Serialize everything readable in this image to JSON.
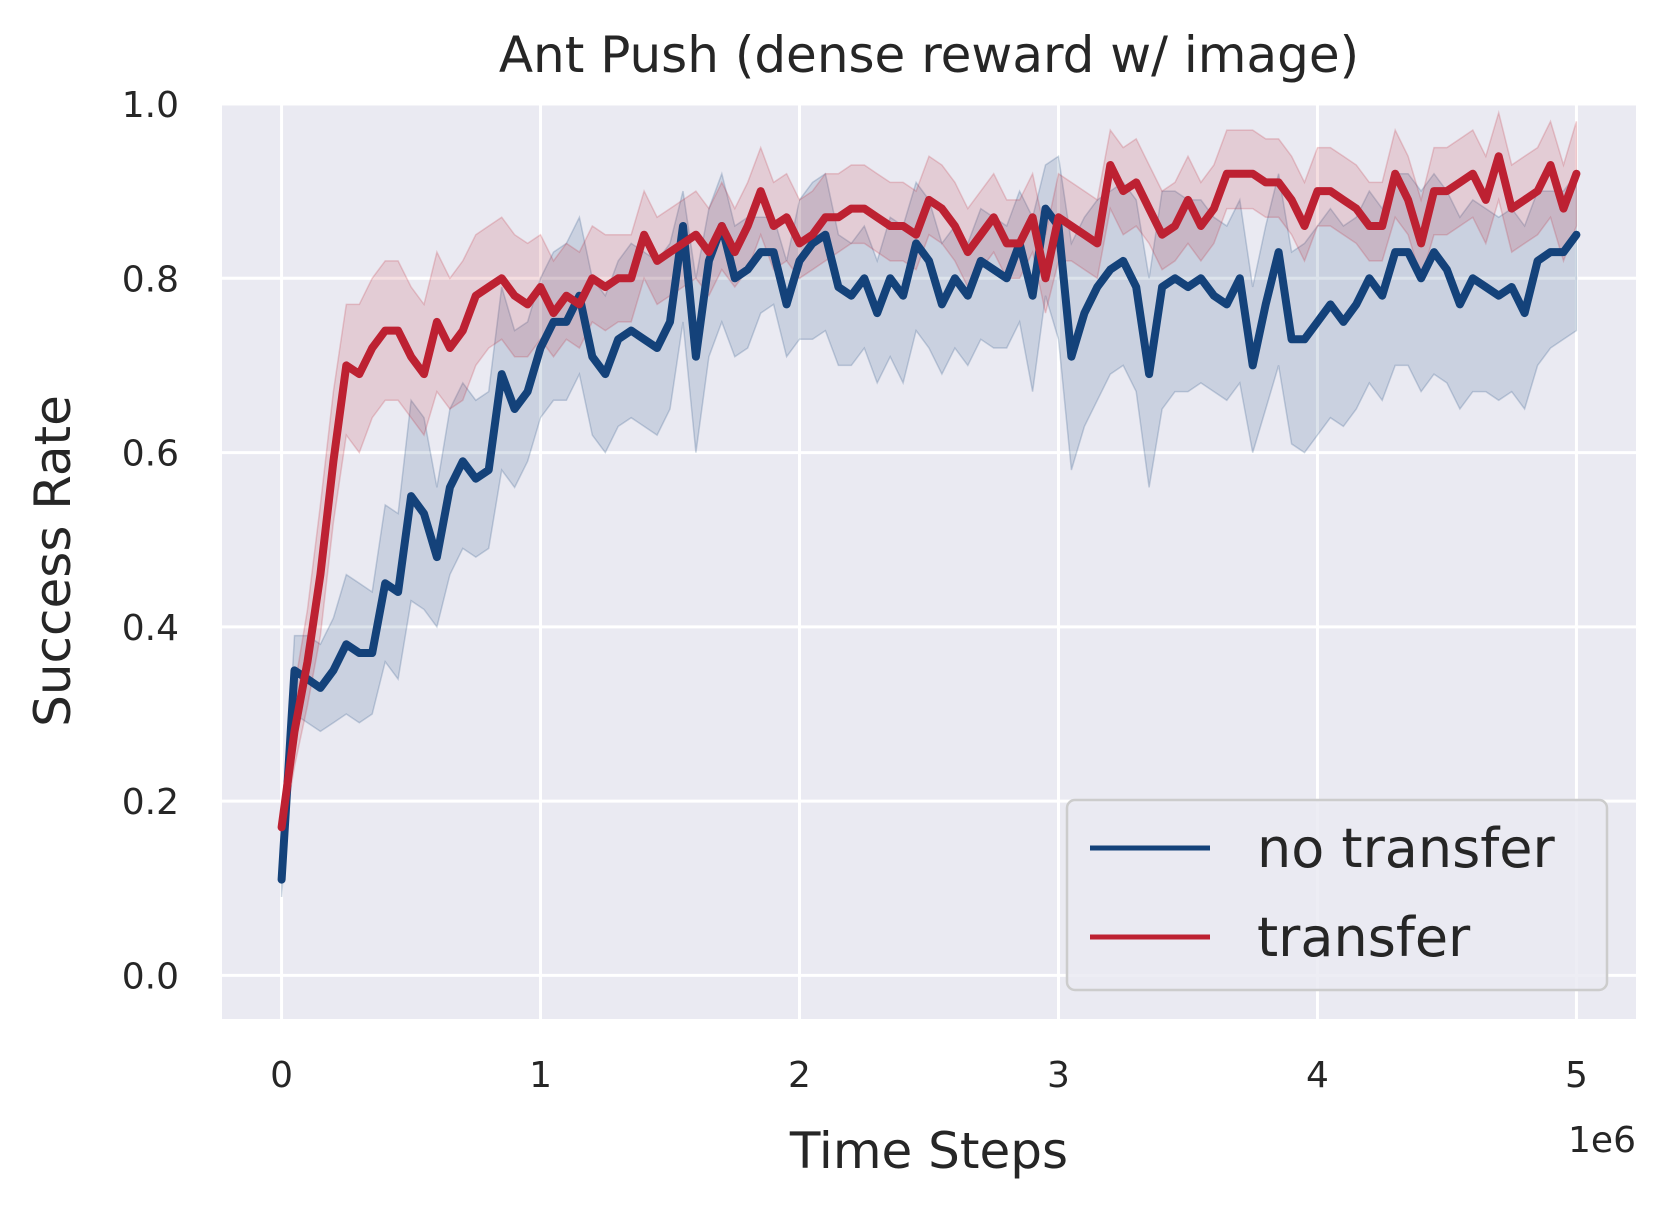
{
  "chart_data": {
    "type": "line",
    "title": "Ant Push (dense reward w/ image)",
    "xlabel": "Time Steps",
    "ylabel": "Success Rate",
    "x_offset_label": "1e6",
    "xlim": [
      -0.23,
      5.23
    ],
    "ylim": [
      -0.05,
      1.0
    ],
    "x_ticks": [
      0,
      1,
      2,
      3,
      4,
      5
    ],
    "x_tick_labels": [
      "0",
      "1",
      "2",
      "3",
      "4",
      "5"
    ],
    "y_ticks": [
      0.0,
      0.2,
      0.4,
      0.6,
      0.8,
      1.0
    ],
    "y_tick_labels": [
      "0.0",
      "0.2",
      "0.4",
      "0.6",
      "0.8",
      "1.0"
    ],
    "grid": true,
    "legend_position": "lower-right",
    "series": [
      {
        "name": "no transfer",
        "color": "#14427a",
        "x": [
          0.0,
          0.05,
          0.1,
          0.15,
          0.2,
          0.25,
          0.3,
          0.35,
          0.4,
          0.45,
          0.5,
          0.55,
          0.6,
          0.65,
          0.7,
          0.75,
          0.8,
          0.85,
          0.9,
          0.95,
          1.0,
          1.05,
          1.1,
          1.15,
          1.2,
          1.25,
          1.3,
          1.35,
          1.4,
          1.45,
          1.5,
          1.55,
          1.6,
          1.65,
          1.7,
          1.75,
          1.8,
          1.85,
          1.9,
          1.95,
          2.0,
          2.05,
          2.1,
          2.15,
          2.2,
          2.25,
          2.3,
          2.35,
          2.4,
          2.45,
          2.5,
          2.55,
          2.6,
          2.65,
          2.7,
          2.75,
          2.8,
          2.85,
          2.9,
          2.95,
          3.0,
          3.05,
          3.1,
          3.15,
          3.2,
          3.25,
          3.3,
          3.35,
          3.4,
          3.45,
          3.5,
          3.55,
          3.6,
          3.65,
          3.7,
          3.75,
          3.8,
          3.85,
          3.9,
          3.95,
          4.0,
          4.05,
          4.1,
          4.15,
          4.2,
          4.25,
          4.3,
          4.35,
          4.4,
          4.45,
          4.5,
          4.55,
          4.6,
          4.65,
          4.7,
          4.75,
          4.8,
          4.85,
          4.9,
          4.95,
          5.0
        ],
        "values": [
          0.11,
          0.35,
          0.34,
          0.33,
          0.35,
          0.38,
          0.37,
          0.37,
          0.45,
          0.44,
          0.55,
          0.53,
          0.48,
          0.56,
          0.59,
          0.57,
          0.58,
          0.69,
          0.65,
          0.67,
          0.72,
          0.75,
          0.75,
          0.78,
          0.71,
          0.69,
          0.73,
          0.74,
          0.73,
          0.72,
          0.75,
          0.86,
          0.71,
          0.82,
          0.86,
          0.8,
          0.81,
          0.83,
          0.83,
          0.77,
          0.82,
          0.84,
          0.85,
          0.79,
          0.78,
          0.8,
          0.76,
          0.8,
          0.78,
          0.84,
          0.82,
          0.77,
          0.8,
          0.78,
          0.82,
          0.81,
          0.8,
          0.84,
          0.78,
          0.88,
          0.86,
          0.71,
          0.76,
          0.79,
          0.81,
          0.82,
          0.79,
          0.69,
          0.79,
          0.8,
          0.79,
          0.8,
          0.78,
          0.77,
          0.8,
          0.7,
          0.77,
          0.83,
          0.73,
          0.73,
          0.75,
          0.77,
          0.75,
          0.77,
          0.8,
          0.78,
          0.83,
          0.83,
          0.8,
          0.83,
          0.81,
          0.77,
          0.8,
          0.79,
          0.78,
          0.79,
          0.76,
          0.82,
          0.83,
          0.83,
          0.85
        ],
        "lower": [
          0.09,
          0.3,
          0.29,
          0.28,
          0.29,
          0.3,
          0.29,
          0.3,
          0.36,
          0.34,
          0.43,
          0.42,
          0.4,
          0.46,
          0.49,
          0.48,
          0.49,
          0.58,
          0.56,
          0.59,
          0.64,
          0.66,
          0.66,
          0.69,
          0.62,
          0.6,
          0.63,
          0.64,
          0.63,
          0.62,
          0.65,
          0.75,
          0.6,
          0.71,
          0.75,
          0.71,
          0.72,
          0.76,
          0.77,
          0.71,
          0.73,
          0.73,
          0.74,
          0.7,
          0.7,
          0.72,
          0.68,
          0.71,
          0.68,
          0.74,
          0.72,
          0.69,
          0.72,
          0.7,
          0.73,
          0.72,
          0.72,
          0.75,
          0.67,
          0.78,
          0.73,
          0.58,
          0.63,
          0.66,
          0.69,
          0.7,
          0.67,
          0.56,
          0.65,
          0.67,
          0.67,
          0.68,
          0.67,
          0.66,
          0.68,
          0.6,
          0.65,
          0.7,
          0.61,
          0.6,
          0.62,
          0.64,
          0.63,
          0.65,
          0.68,
          0.66,
          0.7,
          0.7,
          0.67,
          0.69,
          0.68,
          0.65,
          0.67,
          0.67,
          0.66,
          0.67,
          0.65,
          0.7,
          0.72,
          0.73,
          0.74
        ],
        "upper": [
          0.13,
          0.39,
          0.39,
          0.38,
          0.41,
          0.46,
          0.45,
          0.44,
          0.54,
          0.53,
          0.66,
          0.64,
          0.56,
          0.65,
          0.68,
          0.66,
          0.67,
          0.79,
          0.74,
          0.75,
          0.8,
          0.83,
          0.84,
          0.87,
          0.8,
          0.78,
          0.82,
          0.84,
          0.83,
          0.82,
          0.84,
          0.9,
          0.8,
          0.88,
          0.92,
          0.86,
          0.87,
          0.87,
          0.87,
          0.82,
          0.89,
          0.91,
          0.92,
          0.85,
          0.84,
          0.86,
          0.82,
          0.87,
          0.86,
          0.91,
          0.89,
          0.84,
          0.86,
          0.84,
          0.88,
          0.87,
          0.86,
          0.9,
          0.87,
          0.93,
          0.94,
          0.84,
          0.87,
          0.89,
          0.9,
          0.91,
          0.89,
          0.8,
          0.9,
          0.9,
          0.89,
          0.89,
          0.87,
          0.86,
          0.89,
          0.79,
          0.86,
          0.92,
          0.83,
          0.84,
          0.86,
          0.88,
          0.86,
          0.87,
          0.9,
          0.88,
          0.92,
          0.92,
          0.9,
          0.92,
          0.9,
          0.87,
          0.89,
          0.88,
          0.87,
          0.88,
          0.86,
          0.9,
          0.9,
          0.9,
          0.92
        ]
      },
      {
        "name": "transfer",
        "color": "#bd2132",
        "x": [
          0.0,
          0.05,
          0.1,
          0.15,
          0.2,
          0.25,
          0.3,
          0.35,
          0.4,
          0.45,
          0.5,
          0.55,
          0.6,
          0.65,
          0.7,
          0.75,
          0.8,
          0.85,
          0.9,
          0.95,
          1.0,
          1.05,
          1.1,
          1.15,
          1.2,
          1.25,
          1.3,
          1.35,
          1.4,
          1.45,
          1.5,
          1.55,
          1.6,
          1.65,
          1.7,
          1.75,
          1.8,
          1.85,
          1.9,
          1.95,
          2.0,
          2.05,
          2.1,
          2.15,
          2.2,
          2.25,
          2.3,
          2.35,
          2.4,
          2.45,
          2.5,
          2.55,
          2.6,
          2.65,
          2.7,
          2.75,
          2.8,
          2.85,
          2.9,
          2.95,
          3.0,
          3.05,
          3.1,
          3.15,
          3.2,
          3.25,
          3.3,
          3.35,
          3.4,
          3.45,
          3.5,
          3.55,
          3.6,
          3.65,
          3.7,
          3.75,
          3.8,
          3.85,
          3.9,
          3.95,
          4.0,
          4.05,
          4.1,
          4.15,
          4.2,
          4.25,
          4.3,
          4.35,
          4.4,
          4.45,
          4.5,
          4.55,
          4.6,
          4.65,
          4.7,
          4.75,
          4.8,
          4.85,
          4.9,
          4.95,
          5.0
        ],
        "values": [
          0.17,
          0.28,
          0.36,
          0.46,
          0.59,
          0.7,
          0.69,
          0.72,
          0.74,
          0.74,
          0.71,
          0.69,
          0.75,
          0.72,
          0.74,
          0.78,
          0.79,
          0.8,
          0.78,
          0.77,
          0.79,
          0.76,
          0.78,
          0.77,
          0.8,
          0.79,
          0.8,
          0.8,
          0.85,
          0.82,
          0.83,
          0.84,
          0.85,
          0.83,
          0.86,
          0.83,
          0.86,
          0.9,
          0.86,
          0.87,
          0.84,
          0.85,
          0.87,
          0.87,
          0.88,
          0.88,
          0.87,
          0.86,
          0.86,
          0.85,
          0.89,
          0.88,
          0.86,
          0.83,
          0.85,
          0.87,
          0.84,
          0.84,
          0.87,
          0.8,
          0.87,
          0.86,
          0.85,
          0.84,
          0.93,
          0.9,
          0.91,
          0.88,
          0.85,
          0.86,
          0.89,
          0.86,
          0.88,
          0.92,
          0.92,
          0.92,
          0.91,
          0.91,
          0.89,
          0.86,
          0.9,
          0.9,
          0.89,
          0.88,
          0.86,
          0.86,
          0.92,
          0.89,
          0.84,
          0.9,
          0.9,
          0.91,
          0.92,
          0.89,
          0.94,
          0.88,
          0.89,
          0.9,
          0.93,
          0.88,
          0.92
        ],
        "lower": [
          0.15,
          0.24,
          0.31,
          0.39,
          0.52,
          0.62,
          0.6,
          0.64,
          0.66,
          0.66,
          0.64,
          0.62,
          0.67,
          0.65,
          0.66,
          0.7,
          0.72,
          0.73,
          0.71,
          0.71,
          0.73,
          0.71,
          0.73,
          0.72,
          0.75,
          0.74,
          0.75,
          0.75,
          0.8,
          0.77,
          0.78,
          0.79,
          0.8,
          0.78,
          0.81,
          0.79,
          0.81,
          0.85,
          0.81,
          0.82,
          0.8,
          0.81,
          0.82,
          0.83,
          0.84,
          0.84,
          0.83,
          0.82,
          0.82,
          0.81,
          0.85,
          0.84,
          0.82,
          0.79,
          0.81,
          0.83,
          0.8,
          0.8,
          0.83,
          0.76,
          0.82,
          0.82,
          0.81,
          0.8,
          0.88,
          0.85,
          0.86,
          0.84,
          0.81,
          0.82,
          0.84,
          0.82,
          0.84,
          0.88,
          0.88,
          0.88,
          0.87,
          0.87,
          0.85,
          0.82,
          0.86,
          0.86,
          0.85,
          0.84,
          0.82,
          0.82,
          0.87,
          0.85,
          0.8,
          0.85,
          0.85,
          0.86,
          0.87,
          0.84,
          0.89,
          0.83,
          0.84,
          0.85,
          0.87,
          0.82,
          0.86
        ],
        "upper": [
          0.19,
          0.33,
          0.42,
          0.54,
          0.67,
          0.77,
          0.77,
          0.8,
          0.82,
          0.82,
          0.79,
          0.77,
          0.83,
          0.8,
          0.82,
          0.85,
          0.86,
          0.87,
          0.85,
          0.84,
          0.85,
          0.82,
          0.84,
          0.83,
          0.86,
          0.85,
          0.85,
          0.85,
          0.9,
          0.87,
          0.88,
          0.89,
          0.9,
          0.88,
          0.91,
          0.88,
          0.91,
          0.95,
          0.91,
          0.92,
          0.89,
          0.9,
          0.92,
          0.92,
          0.93,
          0.93,
          0.92,
          0.91,
          0.91,
          0.9,
          0.94,
          0.93,
          0.91,
          0.88,
          0.9,
          0.92,
          0.89,
          0.89,
          0.92,
          0.85,
          0.92,
          0.91,
          0.9,
          0.89,
          0.97,
          0.95,
          0.96,
          0.93,
          0.9,
          0.91,
          0.94,
          0.91,
          0.93,
          0.97,
          0.97,
          0.97,
          0.96,
          0.96,
          0.94,
          0.91,
          0.95,
          0.95,
          0.94,
          0.93,
          0.91,
          0.91,
          0.97,
          0.94,
          0.89,
          0.95,
          0.95,
          0.96,
          0.97,
          0.94,
          0.99,
          0.93,
          0.94,
          0.95,
          0.98,
          0.93,
          0.98
        ]
      }
    ]
  }
}
